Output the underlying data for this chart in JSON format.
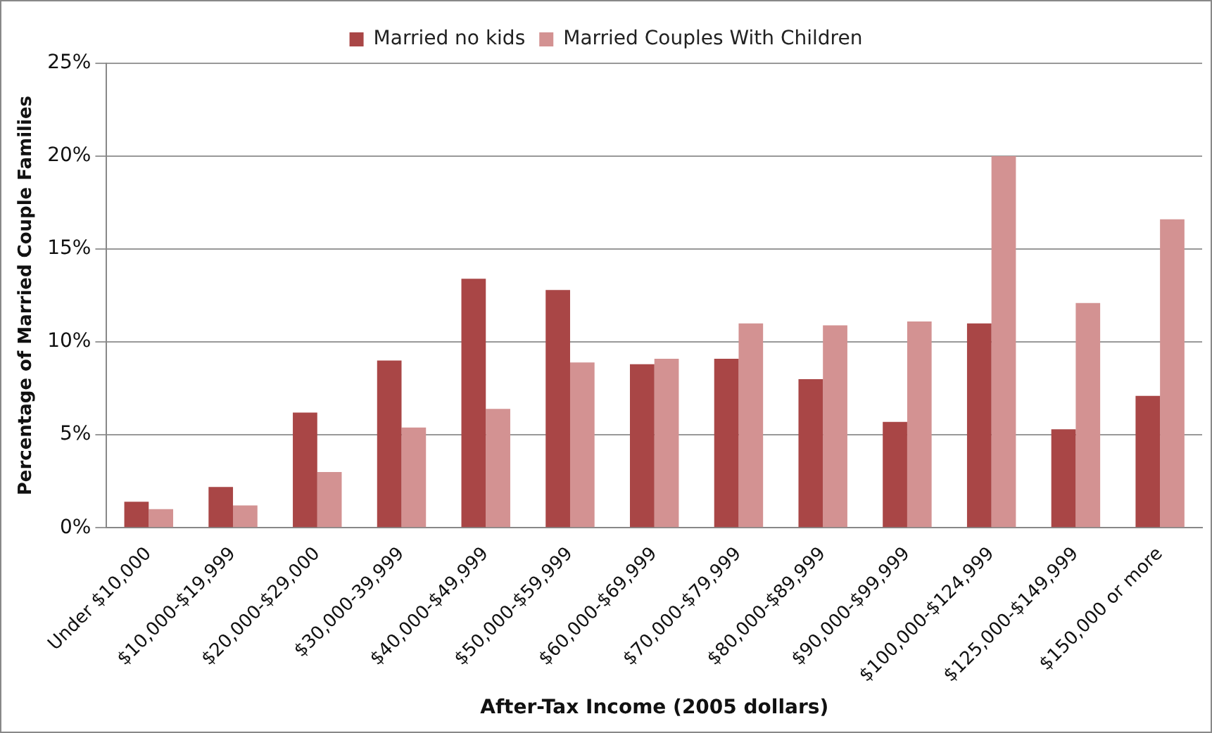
{
  "chart_data": {
    "type": "bar",
    "xlabel": "After-Tax Income (2005 dollars)",
    "ylabel": "Percentage of Married Couple Families",
    "categories": [
      "Under $10,000",
      "$10,000-$19,999",
      "$20,000-$29,000",
      "$30,000-39,999",
      "$40,000-$49,999",
      "$50,000-$59,999",
      "$60,000-$69,999",
      "$70,000-$79,999",
      "$80,000-$89,999",
      "$90,000-$99,999",
      "$100,000-$124,999",
      "$125,000-$149,999",
      "$150,000 or more"
    ],
    "series": [
      {
        "name": "Married no kids",
        "color": "#a94646",
        "values": [
          1.4,
          2.2,
          6.2,
          9.0,
          13.4,
          12.8,
          8.8,
          9.1,
          8.0,
          5.7,
          11.0,
          5.3,
          7.1
        ]
      },
      {
        "name": "Married Couples With Children",
        "color": "#d39292",
        "values": [
          1.0,
          1.2,
          3.0,
          5.4,
          6.4,
          8.9,
          9.1,
          11.0,
          10.9,
          11.1,
          20.0,
          12.1,
          16.6
        ]
      }
    ],
    "ylim": [
      0,
      25
    ],
    "yticks": [
      {
        "value": 0,
        "label": "0%"
      },
      {
        "value": 5,
        "label": "5%"
      },
      {
        "value": 10,
        "label": "10%"
      },
      {
        "value": 15,
        "label": "15%"
      },
      {
        "value": 20,
        "label": "20%"
      },
      {
        "value": 25,
        "label": "25%"
      }
    ],
    "grid": "y",
    "legend": "top"
  }
}
